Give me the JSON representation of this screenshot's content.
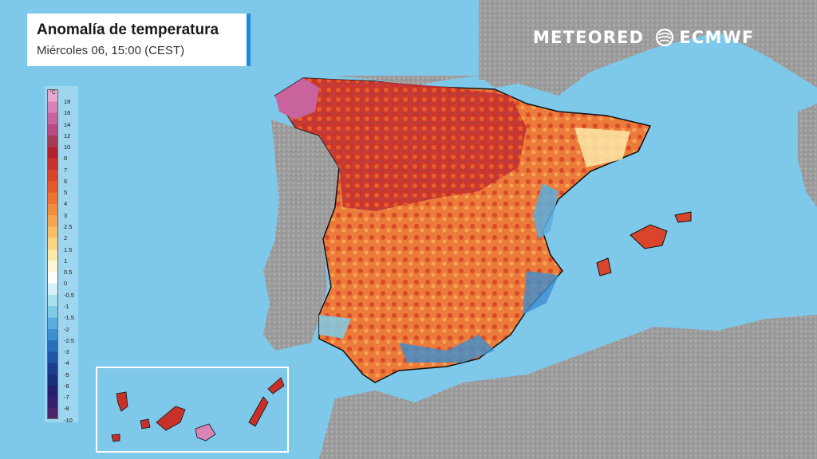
{
  "header": {
    "title": "Anomalía de temperatura",
    "subtitle": "Miércoles 06, 15:00 (CEST)"
  },
  "brands": {
    "meteored": "METEORED",
    "ecmwf": "ECMWF"
  },
  "legend": {
    "unit": "°C",
    "labels": [
      "18",
      "16",
      "14",
      "12",
      "10",
      "8",
      "7",
      "6",
      "5",
      "4",
      "3",
      "2.5",
      "2",
      "1.5",
      "1",
      "0.5",
      "0",
      "-0.5",
      "-1",
      "-1.5",
      "-2",
      "-2.5",
      "-3",
      "-4",
      "-5",
      "-6",
      "-7",
      "-8",
      "-10"
    ],
    "colors": [
      "#e6aad2",
      "#d685b8",
      "#c9639e",
      "#b84a84",
      "#a63a55",
      "#b2222e",
      "#c8302a",
      "#d9452a",
      "#e45a2a",
      "#ec7330",
      "#f18d3c",
      "#f5a552",
      "#f8bd6a",
      "#fbd586",
      "#fde9a8",
      "#fff6d6",
      "#ffffff",
      "#d6f1f5",
      "#a8e0ee",
      "#7ecbe8",
      "#5aaede",
      "#3d8fd0",
      "#2a6fbd",
      "#1f56a6",
      "#193f8e",
      "#1a2f7a",
      "#241f6e",
      "#37206c",
      "#4d246b"
    ]
  },
  "colors": {
    "sea": "#7ec8ea",
    "land_neutral": "#9a9a9a",
    "accent": "#1e88e5"
  }
}
